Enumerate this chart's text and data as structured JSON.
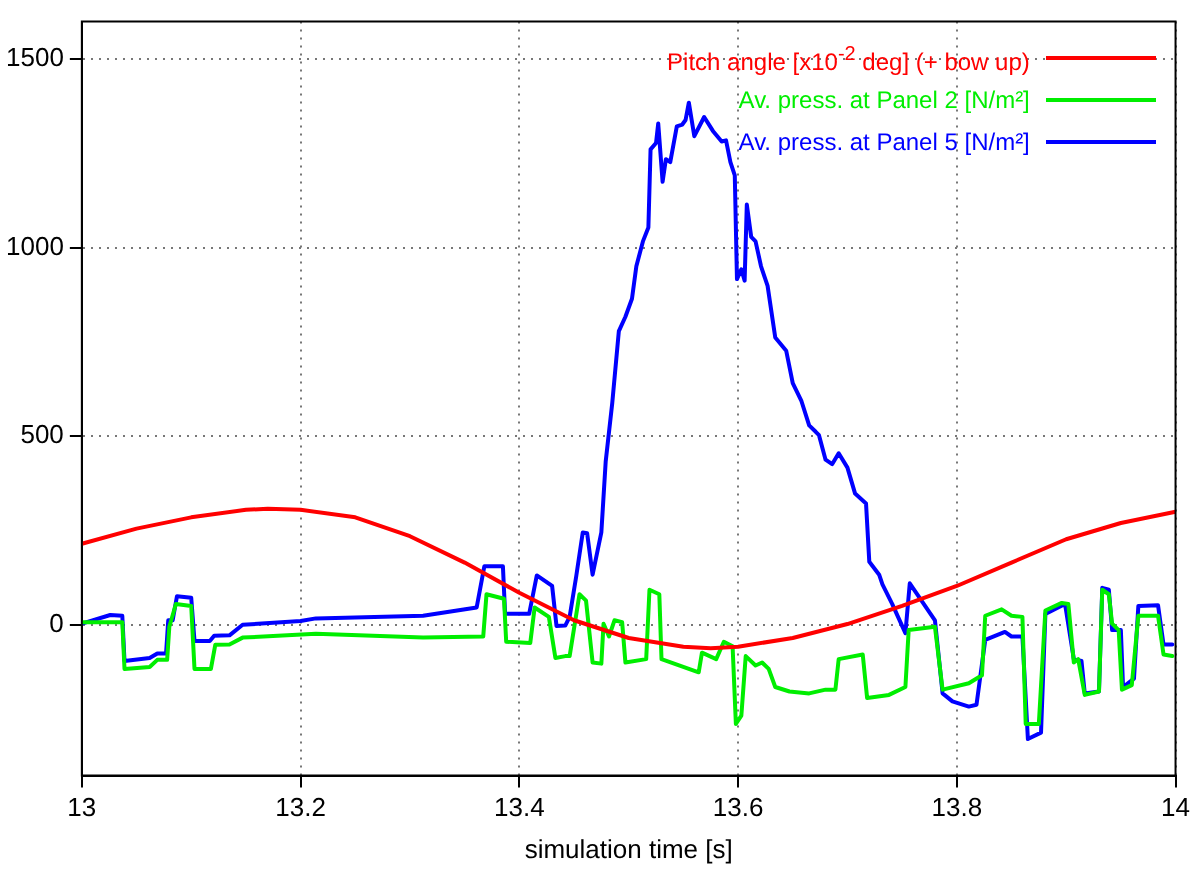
{
  "chart_data": {
    "type": "line",
    "xlabel": "simulation time [s]",
    "xlim": [
      13,
      14
    ],
    "xticks": [
      13,
      13.2,
      13.4,
      13.6,
      13.8,
      14
    ],
    "ylim": [
      -400,
      1600
    ],
    "yticks": [
      0,
      500,
      1000,
      1500
    ],
    "grid": true,
    "legend": "top",
    "marker": "none",
    "line_style": "solid",
    "series": [
      {
        "name": "Pitch angle [x10$^{-2}$ deg] (+ bow up)",
        "color": "#ff0000",
        "x": [
          13,
          13.05,
          13.1,
          13.15,
          13.17,
          13.2,
          13.25,
          13.3,
          13.35,
          13.4,
          13.45,
          13.5,
          13.55,
          13.575,
          13.6,
          13.65,
          13.7,
          13.75,
          13.8,
          13.85,
          13.9,
          13.95,
          14
        ],
        "values": [
          215,
          255,
          285,
          305,
          308,
          305,
          285,
          235,
          165,
          85,
          12,
          -35,
          -58,
          -62,
          -58,
          -35,
          2,
          50,
          103,
          165,
          227,
          270,
          300
        ]
      },
      {
        "name": "Av. press. at Panel 2 [N/m²]",
        "color": "#00ee00",
        "x": [
          13,
          13.037,
          13.039,
          13.062,
          13.069,
          13.078,
          13.08,
          13.086,
          13.1,
          13.103,
          13.118,
          13.122,
          13.135,
          13.147,
          13.214,
          13.312,
          13.367,
          13.37,
          13.386,
          13.388,
          13.41,
          13.414,
          13.427,
          13.433,
          13.442,
          13.446,
          13.455,
          13.461,
          13.467,
          13.475,
          13.477,
          13.482,
          13.487,
          13.494,
          13.497,
          13.516,
          13.519,
          13.528,
          13.53,
          13.564,
          13.567,
          13.58,
          13.587,
          13.595,
          13.598,
          13.603,
          13.607,
          13.616,
          13.622,
          13.628,
          13.634,
          13.647,
          13.665,
          13.68,
          13.689,
          13.692,
          13.714,
          13.718,
          13.738,
          13.753,
          13.756,
          13.78,
          13.787,
          13.811,
          13.823,
          13.826,
          13.841,
          13.85,
          13.86,
          13.863,
          13.875,
          13.881,
          13.896,
          13.902,
          13.907,
          13.911,
          13.917,
          13.93,
          13.933,
          13.939,
          13.942,
          13.948,
          13.951,
          13.96,
          13.966,
          13.984,
          13.989,
          13.997
        ],
        "values": [
          7,
          7,
          -117,
          -112,
          -93,
          -93,
          -5,
          55,
          50,
          -117,
          -117,
          -53,
          -52,
          -34,
          -24,
          -34,
          -31,
          81,
          69,
          -45,
          -48,
          46,
          21,
          -88,
          -83,
          -83,
          81,
          64,
          -100,
          -103,
          3,
          -31,
          12,
          7,
          -100,
          -91,
          93,
          81,
          -91,
          -126,
          -74,
          -91,
          -45,
          -57,
          -263,
          -241,
          -83,
          -108,
          -100,
          -117,
          -165,
          -177,
          -182,
          -172,
          -172,
          -91,
          -79,
          -194,
          -186,
          -165,
          -14,
          -5,
          -172,
          -155,
          -134,
          24,
          41,
          24,
          21,
          -263,
          -263,
          38,
          58,
          55,
          -100,
          -91,
          -186,
          -177,
          93,
          81,
          3,
          -14,
          -172,
          -160,
          24,
          24,
          -79,
          -83
        ]
      },
      {
        "name": "Av. press. at Panel 5 [N/m²]",
        "color": "#0000ff",
        "x": [
          13,
          13.026,
          13.037,
          13.039,
          13.062,
          13.069,
          13.077,
          13.079,
          13.083,
          13.087,
          13.1,
          13.103,
          13.117,
          13.121,
          13.135,
          13.147,
          13.2,
          13.214,
          13.312,
          13.361,
          13.368,
          13.385,
          13.387,
          13.409,
          13.416,
          13.43,
          13.434,
          13.442,
          13.446,
          13.452,
          13.458,
          13.462,
          13.467,
          13.475,
          13.479,
          13.485,
          13.491,
          13.497,
          13.503,
          13.507,
          13.513,
          13.518,
          13.52,
          13.525,
          13.527,
          13.531,
          13.534,
          13.538,
          13.544,
          13.549,
          13.552,
          13.555,
          13.56,
          13.569,
          13.577,
          13.585,
          13.589,
          13.593,
          13.597,
          13.599,
          13.603,
          13.606,
          13.608,
          13.612,
          13.616,
          13.621,
          13.627,
          13.634,
          13.644,
          13.65,
          13.658,
          13.665,
          13.671,
          13.674,
          13.68,
          13.686,
          13.692,
          13.7,
          13.707,
          13.717,
          13.72,
          13.729,
          13.732,
          13.741,
          13.753,
          13.757,
          13.78,
          13.787,
          13.796,
          13.811,
          13.818,
          13.826,
          13.844,
          13.85,
          13.86,
          13.865,
          13.877,
          13.881,
          13.899,
          13.907,
          13.914,
          13.917,
          13.93,
          13.933,
          13.939,
          13.942,
          13.95,
          13.952,
          13.962,
          13.966,
          13.984,
          13.989,
          13.997
        ],
        "values": [
          3,
          26,
          24,
          -96,
          -88,
          -76,
          -76,
          12,
          12,
          76,
          72,
          -43,
          -43,
          -29,
          -28,
          0,
          10,
          17,
          24,
          46,
          155,
          155,
          29,
          29,
          131,
          103,
          -3,
          -2,
          21,
          128,
          245,
          243,
          133,
          245,
          434,
          589,
          779,
          817,
          865,
          951,
          1017,
          1054,
          1261,
          1278,
          1330,
          1175,
          1235,
          1227,
          1322,
          1327,
          1339,
          1385,
          1296,
          1347,
          1310,
          1282,
          1285,
          1227,
          1192,
          917,
          943,
          913,
          1115,
          1029,
          1017,
          951,
          899,
          762,
          727,
          641,
          593,
          529,
          512,
          503,
          438,
          426,
          455,
          417,
          348,
          322,
          167,
          133,
          107,
          55,
          -22,
          110,
          12,
          -182,
          -203,
          -217,
          -212,
          -40,
          -19,
          -31,
          -31,
          -303,
          -286,
          29,
          55,
          -91,
          -96,
          -182,
          -177,
          98,
          93,
          -14,
          -14,
          -165,
          -143,
          50,
          52,
          -52,
          -52
        ]
      }
    ]
  }
}
